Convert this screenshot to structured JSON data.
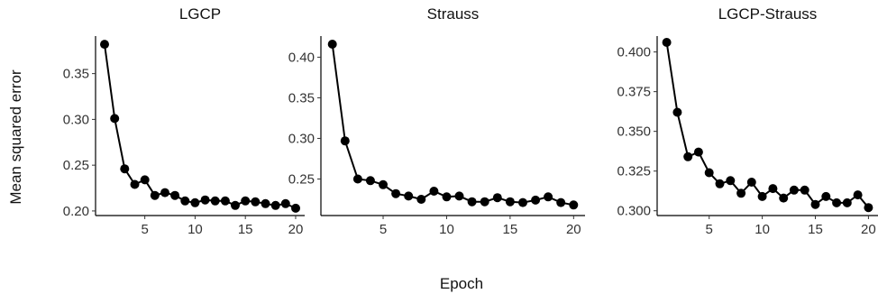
{
  "xlabel": "Epoch",
  "ylabel": "Mean squared error",
  "chart_data": [
    {
      "type": "line",
      "title": "LGCP",
      "xlabel": "Epoch",
      "ylabel": "Mean squared error",
      "xlim": [
        0.1,
        20.9
      ],
      "ylim": [
        0.195,
        0.391
      ],
      "xticks": [
        5,
        10,
        15,
        20
      ],
      "yticks": [
        0.2,
        0.25,
        0.3,
        0.35
      ],
      "ytick_labels": [
        "0.20",
        "0.25",
        "0.30",
        "0.35"
      ],
      "x": [
        1,
        2,
        3,
        4,
        5,
        6,
        7,
        8,
        9,
        10,
        11,
        12,
        13,
        14,
        15,
        16,
        17,
        18,
        19,
        20
      ],
      "values": [
        0.382,
        0.301,
        0.246,
        0.229,
        0.234,
        0.217,
        0.22,
        0.217,
        0.211,
        0.209,
        0.212,
        0.211,
        0.211,
        0.206,
        0.211,
        0.21,
        0.208,
        0.206,
        0.208,
        0.203
      ],
      "grid": false,
      "color": "#000000"
    },
    {
      "type": "line",
      "title": "Strauss",
      "xlabel": "Epoch",
      "ylabel": "Mean squared error",
      "xlim": [
        0.1,
        20.9
      ],
      "ylim": [
        0.205,
        0.426
      ],
      "xticks": [
        5,
        10,
        15,
        20
      ],
      "yticks": [
        0.25,
        0.3,
        0.35,
        0.4
      ],
      "ytick_labels": [
        "0.25",
        "0.30",
        "0.35",
        "0.40"
      ],
      "x": [
        1,
        2,
        3,
        4,
        5,
        6,
        7,
        8,
        9,
        10,
        11,
        12,
        13,
        14,
        15,
        16,
        17,
        18,
        19,
        20
      ],
      "values": [
        0.416,
        0.297,
        0.25,
        0.248,
        0.243,
        0.232,
        0.229,
        0.225,
        0.235,
        0.228,
        0.229,
        0.222,
        0.222,
        0.227,
        0.222,
        0.221,
        0.224,
        0.228,
        0.221,
        0.218
      ],
      "grid": false,
      "color": "#000000"
    },
    {
      "type": "line",
      "title": "LGCP-Strauss",
      "xlabel": "Epoch",
      "ylabel": "Mean squared error",
      "xlim": [
        0.1,
        20.9
      ],
      "ylim": [
        0.297,
        0.41
      ],
      "xticks": [
        5,
        10,
        15,
        20
      ],
      "yticks": [
        0.3,
        0.325,
        0.35,
        0.375,
        0.4
      ],
      "ytick_labels": [
        "0.300",
        "0.325",
        "0.350",
        "0.375",
        "0.400"
      ],
      "x": [
        1,
        2,
        3,
        4,
        5,
        6,
        7,
        8,
        9,
        10,
        11,
        12,
        13,
        14,
        15,
        16,
        17,
        18,
        19,
        20
      ],
      "values": [
        0.406,
        0.362,
        0.334,
        0.337,
        0.324,
        0.317,
        0.319,
        0.311,
        0.318,
        0.309,
        0.314,
        0.308,
        0.313,
        0.313,
        0.304,
        0.309,
        0.305,
        0.305,
        0.31,
        0.302
      ],
      "grid": false,
      "color": "#000000"
    }
  ]
}
